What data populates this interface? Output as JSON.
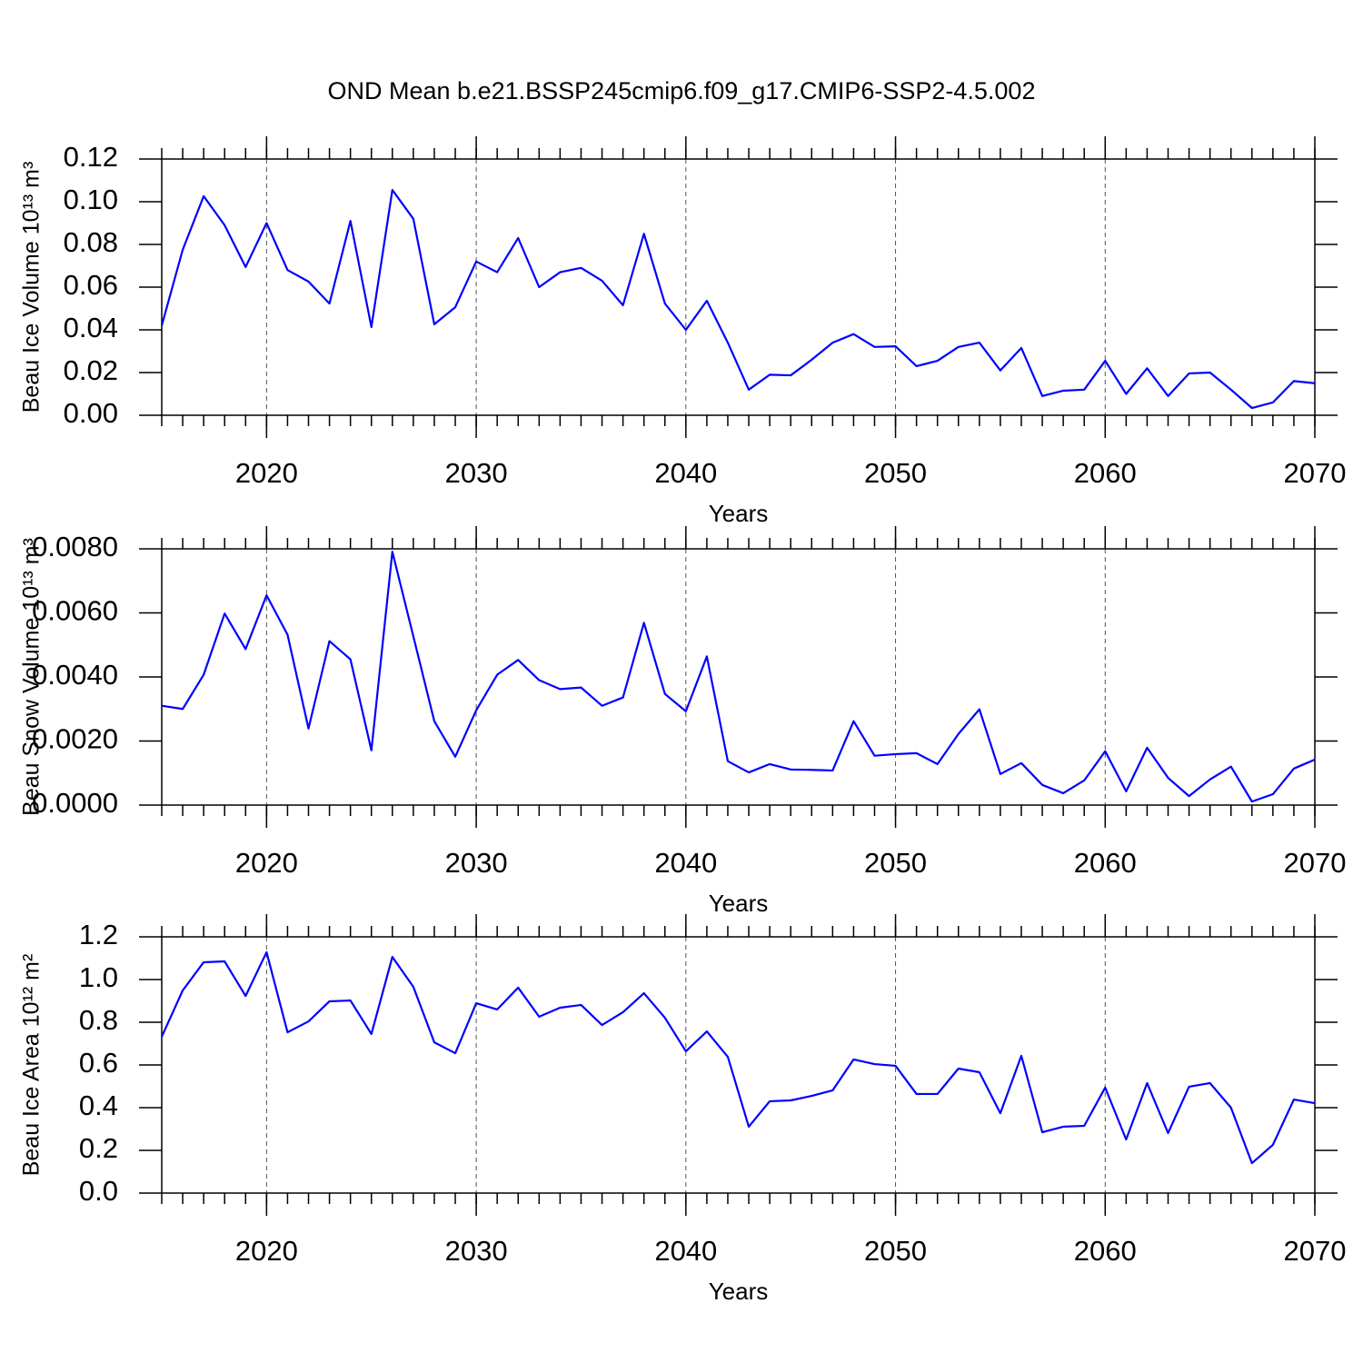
{
  "chart_data": [
    {
      "type": "line",
      "title": "OND Mean b.e21.BSSP245cmip6.f09_g17.CMIP6-SSP2-4.5.002",
      "xlabel": "Years",
      "ylabel": "Beau Ice Volume 10¹³ m³",
      "xgrid": true,
      "x": [
        2015,
        2016,
        2017,
        2018,
        2019,
        2020,
        2021,
        2022,
        2023,
        2024,
        2025,
        2026,
        2027,
        2028,
        2029,
        2030,
        2031,
        2032,
        2033,
        2034,
        2035,
        2036,
        2037,
        2038,
        2039,
        2040,
        2041,
        2042,
        2043,
        2044,
        2045,
        2046,
        2047,
        2048,
        2049,
        2050,
        2051,
        2052,
        2053,
        2054,
        2055,
        2056,
        2057,
        2058,
        2059,
        2060,
        2061,
        2062,
        2063,
        2064,
        2065,
        2066,
        2067,
        2068,
        2069,
        2070
      ],
      "series": [
        {
          "color": "#0000ff",
          "values": [
            0.042,
            0.0775,
            0.1026,
            0.089,
            0.0694,
            0.09,
            0.068,
            0.0626,
            0.0523,
            0.091,
            0.0413,
            0.1055,
            0.092,
            0.0426,
            0.0506,
            0.072,
            0.067,
            0.083,
            0.06,
            0.067,
            0.069,
            0.063,
            0.0515,
            0.085,
            0.0523,
            0.04,
            0.0536,
            0.034,
            0.012,
            0.019,
            0.0187,
            0.026,
            0.034,
            0.038,
            0.032,
            0.0323,
            0.023,
            0.0255,
            0.032,
            0.034,
            0.021,
            0.0315,
            0.009,
            0.0115,
            0.012,
            0.0255,
            0.01,
            0.022,
            0.009,
            0.0196,
            0.02,
            0.012,
            0.0034,
            0.006,
            0.016,
            0.015
          ]
        }
      ],
      "xlim": [
        2015,
        2070
      ],
      "xticks": [
        2020,
        2030,
        2040,
        2050,
        2060,
        2070
      ],
      "ylim": [
        0,
        0.12
      ],
      "yticks": [
        {
          "value": 0,
          "label": "0.00"
        },
        {
          "value": 0.02,
          "label": "0.02"
        },
        {
          "value": 0.04,
          "label": "0.04"
        },
        {
          "value": 0.06,
          "label": "0.06"
        },
        {
          "value": 0.08,
          "label": "0.08"
        },
        {
          "value": 0.1,
          "label": "0.10"
        },
        {
          "value": 0.12,
          "label": "0.12"
        }
      ]
    },
    {
      "type": "line",
      "xlabel": "Years",
      "ylabel": "Beau Snow Volume 10¹³ m³",
      "xgrid": true,
      "x": [
        2015,
        2016,
        2017,
        2018,
        2019,
        2020,
        2021,
        2022,
        2023,
        2024,
        2025,
        2026,
        2027,
        2028,
        2029,
        2030,
        2031,
        2032,
        2033,
        2034,
        2035,
        2036,
        2037,
        2038,
        2039,
        2040,
        2041,
        2042,
        2043,
        2044,
        2045,
        2046,
        2047,
        2048,
        2049,
        2050,
        2051,
        2052,
        2053,
        2054,
        2055,
        2056,
        2057,
        2058,
        2059,
        2060,
        2061,
        2062,
        2063,
        2064,
        2065,
        2066,
        2067,
        2068,
        2069,
        2070
      ],
      "series": [
        {
          "color": "#0000ff",
          "values": [
            0.0031,
            0.003,
            0.00407,
            0.00598,
            0.00487,
            0.00655,
            0.00532,
            0.00239,
            0.00512,
            0.00455,
            0.00171,
            0.00791,
            0.00527,
            0.00262,
            0.00151,
            0.00296,
            0.00407,
            0.00453,
            0.0039,
            0.00362,
            0.00367,
            0.0031,
            0.00336,
            0.00569,
            0.00347,
            0.00293,
            0.00464,
            0.00137,
            0.00102,
            0.00128,
            0.00111,
            0.0011,
            0.00108,
            0.00262,
            0.00154,
            0.00159,
            0.00162,
            0.00128,
            0.00222,
            0.00299,
            0.00097,
            0.00131,
            0.00063,
            0.00037,
            0.00077,
            0.00168,
            0.00043,
            0.00179,
            0.00085,
            0.00028,
            0.0008,
            0.0012,
            0.00011,
            0.00034,
            0.00114,
            0.00142
          ]
        }
      ],
      "xlim": [
        2015,
        2070
      ],
      "xticks": [
        2020,
        2030,
        2040,
        2050,
        2060,
        2070
      ],
      "ylim": [
        0,
        0.008
      ],
      "yticks": [
        {
          "value": 0,
          "label": "0.0000"
        },
        {
          "value": 0.002,
          "label": "0.0020"
        },
        {
          "value": 0.004,
          "label": "0.0040"
        },
        {
          "value": 0.006,
          "label": "0.0060"
        },
        {
          "value": 0.008,
          "label": "0.0080"
        }
      ]
    },
    {
      "type": "line",
      "xlabel": "Years",
      "ylabel": "Beau Ice Area 10¹² m²",
      "xgrid": true,
      "x": [
        2015,
        2016,
        2017,
        2018,
        2019,
        2020,
        2021,
        2022,
        2023,
        2024,
        2025,
        2026,
        2027,
        2028,
        2029,
        2030,
        2031,
        2032,
        2033,
        2034,
        2035,
        2036,
        2037,
        2038,
        2039,
        2040,
        2041,
        2042,
        2043,
        2044,
        2045,
        2046,
        2047,
        2048,
        2049,
        2050,
        2051,
        2052,
        2053,
        2054,
        2055,
        2056,
        2057,
        2058,
        2059,
        2060,
        2061,
        2062,
        2063,
        2064,
        2065,
        2066,
        2067,
        2068,
        2069,
        2070
      ],
      "series": [
        {
          "color": "#0000ff",
          "values": [
            0.732,
            0.949,
            1.081,
            1.085,
            0.923,
            1.128,
            0.753,
            0.804,
            0.898,
            0.902,
            0.745,
            1.106,
            0.966,
            0.706,
            0.655,
            0.889,
            0.86,
            0.962,
            0.826,
            0.868,
            0.881,
            0.787,
            0.847,
            0.936,
            0.821,
            0.664,
            0.757,
            0.638,
            0.311,
            0.43,
            0.434,
            0.455,
            0.481,
            0.626,
            0.604,
            0.596,
            0.464,
            0.464,
            0.583,
            0.566,
            0.374,
            0.643,
            0.285,
            0.311,
            0.315,
            0.494,
            0.251,
            0.515,
            0.281,
            0.498,
            0.515,
            0.4,
            0.14,
            0.226,
            0.438,
            0.421
          ]
        }
      ],
      "xlim": [
        2015,
        2070
      ],
      "xticks": [
        2020,
        2030,
        2040,
        2050,
        2060,
        2070
      ],
      "ylim": [
        0,
        1.2
      ],
      "yticks": [
        {
          "value": 0,
          "label": "0.0"
        },
        {
          "value": 0.2,
          "label": "0.2"
        },
        {
          "value": 0.4,
          "label": "0.4"
        },
        {
          "value": 0.6,
          "label": "0.6"
        },
        {
          "value": 0.8,
          "label": "0.8"
        },
        {
          "value": 1,
          "label": "1.0"
        },
        {
          "value": 1.2,
          "label": "1.2"
        }
      ]
    }
  ]
}
